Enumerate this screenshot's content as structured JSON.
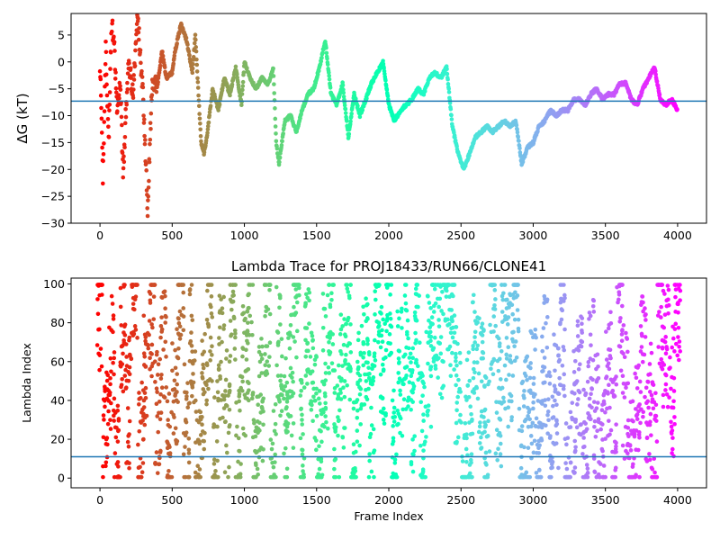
{
  "chart_data": [
    {
      "type": "scatter",
      "title": "",
      "xlabel": "",
      "ylabel": "ΔG (kT)",
      "xlim": [
        -200,
        4200
      ],
      "ylim": [
        -30,
        9
      ],
      "xticks": [
        0,
        500,
        1000,
        1500,
        2000,
        2500,
        3000,
        3500,
        4000
      ],
      "yticks": [
        -30,
        -25,
        -20,
        -15,
        -10,
        -5,
        0,
        5
      ],
      "hline": -7.3,
      "hline_color": "#1f77b4",
      "colormap": "rainbow (red at frame 0 to violet at frame 4000)",
      "grid": false,
      "series": [
        {
          "x": [
            0,
            20,
            40,
            60,
            80,
            100,
            120,
            140,
            160,
            180,
            200,
            230,
            260,
            300,
            330,
            360,
            400,
            430,
            460,
            500,
            520,
            560,
            600,
            640,
            660,
            680,
            700,
            720,
            740,
            780,
            820,
            860,
            900,
            940,
            980,
            1000,
            1040,
            1080,
            1120,
            1160,
            1180,
            1200,
            1220,
            1240,
            1280,
            1320,
            1360,
            1400,
            1440,
            1480,
            1520,
            1560,
            1600,
            1640,
            1680,
            1720,
            1760,
            1800,
            1840,
            1880,
            1920,
            1960,
            2000,
            2040,
            2080,
            2120,
            2160,
            2200,
            2240,
            2280,
            2320,
            2360,
            2400,
            2440,
            2480,
            2520,
            2560,
            2600,
            2640,
            2680,
            2720,
            2760,
            2800,
            2840,
            2880,
            2920,
            2960,
            3000,
            3040,
            3080,
            3120,
            3160,
            3200,
            3240,
            3280,
            3320,
            3360,
            3400,
            3440,
            3480,
            3520,
            3560,
            3600,
            3640,
            3680,
            3720,
            3760,
            3800,
            3840,
            3880,
            3920,
            3960,
            4000
          ],
          "y": [
            0,
            -22,
            3,
            -15,
            8,
            2,
            -10,
            -3,
            -21,
            -9,
            0,
            -6,
            9,
            -7,
            -27,
            -5,
            -4,
            2,
            -3,
            -2,
            2,
            7,
            4,
            -2,
            5,
            -5,
            -15,
            -17,
            -14,
            -5,
            -9,
            -3,
            -6,
            -1,
            -8,
            0,
            -3,
            -5,
            -3,
            -4,
            -3,
            -1,
            -15,
            -19,
            -11,
            -10,
            -13,
            -9,
            -6,
            -5,
            -1,
            4,
            -6,
            -8,
            -4,
            -14,
            -6,
            -10,
            -7,
            -4,
            -2,
            0,
            -8,
            -11,
            -9,
            -8,
            -7,
            -5,
            -6,
            -3,
            -2,
            -3,
            -1,
            -12,
            -17,
            -20,
            -17,
            -14,
            -13,
            -12,
            -13,
            -12,
            -11,
            -12,
            -11,
            -19,
            -16,
            -15,
            -12,
            -11,
            -9,
            -10,
            -9,
            -9,
            -7,
            -7,
            -8,
            -6,
            -5,
            -7,
            -6,
            -6,
            -4,
            -4,
            -7,
            -8,
            -5,
            -3,
            -1,
            -7,
            -8,
            -7,
            -9
          ]
        }
      ]
    },
    {
      "type": "scatter",
      "title": "Lambda Trace for PROJ18433/RUN66/CLONE41",
      "xlabel": "Frame Index",
      "ylabel": "Lambda Index",
      "xlim": [
        -200,
        4200
      ],
      "ylim": [
        -5,
        103
      ],
      "xticks": [
        0,
        500,
        1000,
        1500,
        2000,
        2500,
        3000,
        3500,
        4000
      ],
      "yticks": [
        0,
        20,
        40,
        60,
        80,
        100
      ],
      "hline": 11,
      "hline_color": "#1f77b4",
      "colormap": "rainbow (red at frame 0 to violet at frame 4000)",
      "grid": false,
      "series": [
        {
          "x": [
            0,
            40,
            80,
            120,
            160,
            200,
            240,
            280,
            320,
            360,
            400,
            440,
            480,
            520,
            560,
            600,
            640,
            680,
            720,
            760,
            800,
            840,
            880,
            920,
            960,
            1000,
            1040,
            1080,
            1120,
            1160,
            1200,
            1240,
            1280,
            1320,
            1360,
            1400,
            1440,
            1480,
            1520,
            1560,
            1600,
            1640,
            1680,
            1720,
            1760,
            1800,
            1840,
            1880,
            1920,
            1960,
            2000,
            2040,
            2080,
            2120,
            2160,
            2200,
            2240,
            2280,
            2320,
            2360,
            2400,
            2440,
            2480,
            2520,
            2560,
            2600,
            2640,
            2680,
            2720,
            2760,
            2800,
            2840,
            2880,
            2920,
            2960,
            3000,
            3040,
            3080,
            3120,
            3160,
            3200,
            3240,
            3280,
            3320,
            3360,
            3400,
            3440,
            3480,
            3520,
            3560,
            3600,
            3640,
            3680,
            3720,
            3760,
            3800,
            3840,
            3880,
            3920,
            3960,
            4000
          ],
          "y": [
            90,
            20,
            60,
            5,
            75,
            40,
            98,
            15,
            55,
            85,
            30,
            65,
            10,
            50,
            95,
            25,
            70,
            5,
            45,
            80,
            15,
            60,
            35,
            90,
            20,
            55,
            75,
            10,
            40,
            85,
            5,
            65,
            30,
            50,
            95,
            20,
            70,
            40,
            10,
            60,
            85,
            25,
            50,
            75,
            5,
            45,
            65,
            30,
            90,
            60,
            98,
            15,
            55,
            70,
            35,
            80,
            20,
            60,
            90,
            75,
            95,
            85,
            45,
            10,
            30,
            65,
            50,
            20,
            80,
            40,
            70,
            60,
            95,
            15,
            30,
            45,
            10,
            60,
            25,
            40,
            75,
            5,
            35,
            50,
            15,
            65,
            30,
            10,
            55,
            20,
            85,
            45,
            5,
            25,
            60,
            35,
            15,
            90,
            70,
            45,
            95
          ]
        }
      ]
    }
  ]
}
